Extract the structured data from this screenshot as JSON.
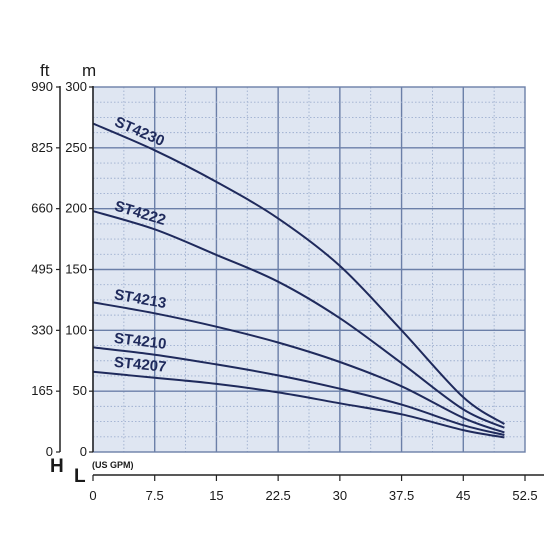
{
  "colors": {
    "curve": "#1f2a5c",
    "grid_major": "#6b7fa8",
    "plot_background": "#dfe6f2",
    "axis": "#222222"
  },
  "chart_data": {
    "type": "line",
    "title": "",
    "y_unit_label": "m",
    "y_secondary_unit_label": "ft",
    "y_axis_letter": "H",
    "x_axis_letter": "L",
    "x_unit_label": "(US GPM)",
    "ylim": [
      0,
      300
    ],
    "xlim": [
      0,
      52.5
    ],
    "y_ticks": [
      0,
      50,
      100,
      150,
      200,
      250,
      300
    ],
    "y_ticks_ft": [
      0,
      165,
      330,
      495,
      660,
      825,
      990
    ],
    "x_ticks": [
      0,
      7.5,
      15,
      22.5,
      30,
      37.5,
      45,
      52.5
    ],
    "x_tick_labels": [
      "0",
      "7.5",
      "15",
      "22.5",
      "30",
      "37.5",
      "45",
      "52.5"
    ],
    "grid": true,
    "series": [
      {
        "name": "ST4230",
        "x": [
          0,
          7.5,
          15,
          22.5,
          30,
          37.5,
          45,
          50
        ],
        "y": [
          270,
          248,
          222,
          192,
          153,
          100,
          45,
          23
        ]
      },
      {
        "name": "ST4222",
        "x": [
          0,
          7.5,
          15,
          22.5,
          30,
          37.5,
          45,
          50
        ],
        "y": [
          198,
          183,
          162,
          140,
          110,
          73,
          35,
          20
        ]
      },
      {
        "name": "ST4213",
        "x": [
          0,
          7.5,
          15,
          22.5,
          30,
          37.5,
          45,
          50
        ],
        "y": [
          123,
          114,
          103,
          90,
          74,
          54,
          28,
          16
        ]
      },
      {
        "name": "ST4210",
        "x": [
          0,
          7.5,
          15,
          22.5,
          30,
          37.5,
          45,
          50
        ],
        "y": [
          86,
          80,
          72,
          63,
          52,
          39,
          22,
          14
        ]
      },
      {
        "name": "ST4207",
        "x": [
          0,
          7.5,
          15,
          22.5,
          30,
          37.5,
          45,
          50
        ],
        "y": [
          66,
          61,
          56,
          49,
          40,
          31,
          18,
          12
        ]
      }
    ]
  }
}
